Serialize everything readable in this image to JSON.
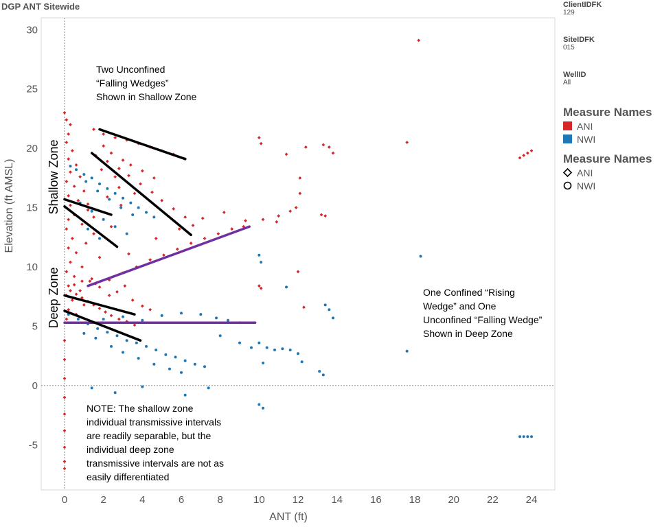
{
  "header": {
    "title": "DGP ANT Sitewide"
  },
  "filters": [
    {
      "label": "ClientIDFK",
      "value": "129"
    },
    {
      "label": "SiteIDFK",
      "value": "015"
    },
    {
      "label": "WellID",
      "value": "All"
    }
  ],
  "legend_color": {
    "title": "Measure Names",
    "items": [
      {
        "label": "ANI",
        "color": "#d62728"
      },
      {
        "label": "NWI",
        "color": "#1f77b4"
      }
    ]
  },
  "legend_shape": {
    "title": "Measure Names",
    "items": [
      {
        "label": "ANI",
        "shape": "diamond"
      },
      {
        "label": "NWI",
        "shape": "circle"
      }
    ]
  },
  "annotations": {
    "shallow_wedges": [
      "Two Unconfined",
      "“Falling Wedges”",
      "Shown in Shallow Zone"
    ],
    "deep_wedges": [
      "One Confined “Rising",
      "Wedge” and One",
      "Unconfined “Falling Wedge”",
      "Shown in Deep Zone"
    ],
    "note": [
      "NOTE:  The shallow zone",
      "individual transmissive intervals",
      "are readily separable, but the",
      "individual deep zone",
      "transmissive intervals are not as",
      "easily differentiated"
    ],
    "shallow_zone": "Shallow Zone",
    "deep_zone": "Deep Zone"
  },
  "chart_data": {
    "type": "scatter",
    "title": "DGP ANT Sitewide",
    "xlabel": "ANT (ft)",
    "ylabel": "Elevation (ft AMSL)",
    "xlim": [
      -1.2,
      25.2
    ],
    "ylim": [
      -8.8,
      31.0
    ],
    "xticks": [
      0,
      2,
      4,
      6,
      8,
      10,
      12,
      14,
      16,
      18,
      20,
      22,
      24
    ],
    "yticks": [
      -5,
      0,
      5,
      10,
      15,
      20,
      25,
      30
    ],
    "grid": false,
    "legend": "right",
    "series": [
      {
        "name": "ANI",
        "color": "#d62728",
        "points": [
          [
            0.0,
            23.0
          ],
          [
            0.1,
            22.4
          ],
          [
            0.3,
            22.0
          ],
          [
            0.2,
            21.2
          ],
          [
            0.1,
            20.5
          ],
          [
            0.4,
            19.8
          ],
          [
            0.2,
            19.1
          ],
          [
            0.6,
            18.6
          ],
          [
            0.3,
            18.0
          ],
          [
            0.8,
            17.6
          ],
          [
            0.1,
            17.2
          ],
          [
            0.5,
            16.8
          ],
          [
            1.0,
            16.4
          ],
          [
            0.2,
            16.0
          ],
          [
            0.7,
            15.6
          ],
          [
            0.3,
            15.2
          ],
          [
            1.2,
            14.8
          ],
          [
            0.5,
            14.4
          ],
          [
            0.2,
            14.0
          ],
          [
            0.9,
            13.6
          ],
          [
            0.1,
            13.2
          ],
          [
            1.5,
            12.8
          ],
          [
            0.4,
            12.4
          ],
          [
            1.1,
            12.0
          ],
          [
            0.2,
            11.6
          ],
          [
            0.6,
            11.2
          ],
          [
            1.8,
            10.8
          ],
          [
            0.3,
            10.4
          ],
          [
            0.9,
            10.0
          ],
          [
            0.1,
            9.6
          ],
          [
            0.5,
            9.2
          ],
          [
            1.3,
            8.8
          ],
          [
            0.2,
            8.4
          ],
          [
            0.8,
            8.0
          ],
          [
            0.1,
            7.6
          ],
          [
            0.4,
            7.2
          ],
          [
            1.0,
            6.8
          ],
          [
            0.2,
            6.4
          ],
          [
            0.6,
            6.0
          ],
          [
            0.1,
            5.6
          ],
          [
            1.5,
            21.6
          ],
          [
            2.0,
            21.2
          ],
          [
            2.6,
            20.9
          ],
          [
            3.2,
            20.7
          ],
          [
            3.8,
            20.4
          ],
          [
            4.4,
            20.1
          ],
          [
            5.0,
            19.8
          ],
          [
            5.6,
            19.5
          ],
          [
            6.2,
            19.1
          ],
          [
            1.6,
            19.4
          ],
          [
            2.2,
            18.9
          ],
          [
            2.8,
            18.3
          ],
          [
            3.3,
            17.7
          ],
          [
            3.9,
            17.0
          ],
          [
            4.5,
            16.3
          ],
          [
            5.0,
            15.6
          ],
          [
            5.6,
            14.9
          ],
          [
            6.2,
            14.2
          ],
          [
            6.6,
            13.5
          ],
          [
            2.0,
            20.2
          ],
          [
            2.4,
            19.6
          ],
          [
            3.0,
            19.0
          ],
          [
            1.9,
            18.2
          ],
          [
            2.6,
            17.6
          ],
          [
            3.4,
            18.6
          ],
          [
            4.0,
            18.1
          ],
          [
            4.6,
            17.5
          ],
          [
            2.8,
            16.7
          ],
          [
            3.6,
            16.2
          ],
          [
            2.2,
            15.9
          ],
          [
            1.2,
            15.3
          ],
          [
            2.9,
            15.2
          ],
          [
            1.5,
            14.2
          ],
          [
            2.4,
            13.4
          ],
          [
            1.6,
            8.6
          ],
          [
            2.3,
            8.9
          ],
          [
            3.0,
            9.5
          ],
          [
            3.7,
            10.0
          ],
          [
            4.4,
            10.6
          ],
          [
            5.1,
            11.0
          ],
          [
            5.8,
            11.5
          ],
          [
            6.5,
            12.0
          ],
          [
            7.2,
            12.4
          ],
          [
            7.9,
            12.8
          ],
          [
            8.6,
            13.2
          ],
          [
            9.2,
            13.4
          ],
          [
            3.3,
            11.1
          ],
          [
            4.7,
            12.4
          ],
          [
            5.9,
            13.2
          ],
          [
            7.1,
            14.1
          ],
          [
            8.2,
            14.6
          ],
          [
            9.3,
            13.9
          ],
          [
            10.2,
            14.0
          ],
          [
            11.0,
            14.3
          ],
          [
            11.6,
            14.7
          ],
          [
            11.9,
            15.0
          ],
          [
            12.1,
            16.2
          ],
          [
            12.1,
            17.5
          ],
          [
            10.0,
            20.9
          ],
          [
            10.1,
            20.4
          ],
          [
            11.4,
            19.5
          ],
          [
            12.4,
            20.1
          ],
          [
            13.3,
            20.3
          ],
          [
            13.6,
            20.1
          ],
          [
            13.8,
            19.6
          ],
          [
            13.2,
            14.4
          ],
          [
            13.4,
            14.3
          ],
          [
            10.9,
            13.8
          ],
          [
            12.0,
            9.6
          ],
          [
            10.0,
            8.4
          ],
          [
            10.1,
            8.2
          ],
          [
            12.3,
            6.6
          ],
          [
            17.6,
            20.5
          ],
          [
            18.2,
            29.1
          ],
          [
            23.4,
            19.2
          ],
          [
            23.6,
            19.4
          ],
          [
            23.8,
            19.6
          ],
          [
            24.0,
            19.8
          ],
          [
            0.3,
            8.0
          ],
          [
            0.6,
            7.7
          ],
          [
            0.9,
            7.4
          ],
          [
            1.2,
            7.1
          ],
          [
            1.5,
            6.8
          ],
          [
            1.8,
            6.5
          ],
          [
            2.1,
            6.2
          ],
          [
            2.4,
            5.9
          ],
          [
            2.8,
            5.6
          ],
          [
            3.2,
            5.4
          ],
          [
            3.6,
            5.1
          ],
          [
            0.5,
            8.5
          ],
          [
            0.9,
            8.8
          ],
          [
            1.4,
            9.0
          ],
          [
            1.8,
            8.3
          ],
          [
            2.3,
            7.6
          ],
          [
            2.7,
            7.9
          ],
          [
            3.1,
            8.4
          ],
          [
            3.5,
            7.2
          ],
          [
            4.0,
            6.7
          ],
          [
            4.4,
            6.4
          ],
          [
            0.0,
            3.8
          ],
          [
            0.0,
            2.2
          ],
          [
            0.0,
            0.6
          ],
          [
            0.0,
            -1.0
          ],
          [
            0.0,
            -2.4
          ],
          [
            0.0,
            -3.8
          ],
          [
            0.0,
            -5.2
          ],
          [
            0.0,
            -6.4
          ],
          [
            0.0,
            -7.0
          ]
        ]
      },
      {
        "name": "NWI",
        "color": "#1f77b4",
        "points": [
          [
            0.3,
            18.5
          ],
          [
            0.6,
            18.2
          ],
          [
            1.0,
            17.8
          ],
          [
            1.4,
            17.5
          ],
          [
            1.8,
            17.0
          ],
          [
            2.2,
            16.6
          ],
          [
            2.6,
            16.2
          ],
          [
            3.0,
            15.8
          ],
          [
            3.4,
            15.4
          ],
          [
            3.8,
            15.0
          ],
          [
            4.2,
            14.6
          ],
          [
            4.6,
            14.2
          ],
          [
            1.1,
            17.2
          ],
          [
            1.7,
            16.4
          ],
          [
            2.3,
            15.7
          ],
          [
            2.9,
            15.0
          ],
          [
            3.5,
            14.4
          ],
          [
            0.8,
            15.4
          ],
          [
            1.4,
            14.7
          ],
          [
            2.0,
            14.0
          ],
          [
            2.6,
            13.4
          ],
          [
            3.2,
            12.8
          ],
          [
            1.2,
            13.2
          ],
          [
            1.8,
            12.4
          ],
          [
            0.2,
            6.0
          ],
          [
            0.7,
            5.6
          ],
          [
            1.2,
            5.2
          ],
          [
            1.7,
            4.8
          ],
          [
            2.2,
            4.5
          ],
          [
            2.7,
            4.2
          ],
          [
            3.2,
            3.8
          ],
          [
            3.7,
            3.6
          ],
          [
            4.2,
            3.3
          ],
          [
            4.7,
            3.0
          ],
          [
            5.2,
            2.6
          ],
          [
            5.7,
            2.4
          ],
          [
            6.2,
            2.1
          ],
          [
            6.7,
            1.8
          ],
          [
            7.2,
            1.6
          ],
          [
            1.0,
            4.4
          ],
          [
            1.6,
            4.0
          ],
          [
            2.4,
            3.3
          ],
          [
            3.0,
            2.8
          ],
          [
            3.8,
            2.3
          ],
          [
            4.6,
            1.8
          ],
          [
            5.4,
            1.4
          ],
          [
            6.0,
            1.1
          ],
          [
            2.0,
            5.6
          ],
          [
            3.0,
            5.8
          ],
          [
            4.0,
            5.5
          ],
          [
            5.0,
            5.9
          ],
          [
            6.0,
            6.1
          ],
          [
            7.0,
            6.0
          ],
          [
            7.8,
            5.7
          ],
          [
            8.4,
            5.5
          ],
          [
            9.0,
            5.3
          ],
          [
            8.0,
            4.2
          ],
          [
            9.0,
            3.6
          ],
          [
            9.6,
            3.2
          ],
          [
            10.0,
            3.6
          ],
          [
            10.4,
            3.2
          ],
          [
            10.8,
            3.0
          ],
          [
            11.2,
            3.1
          ],
          [
            11.6,
            3.0
          ],
          [
            12.0,
            2.7
          ],
          [
            12.2,
            2.0
          ],
          [
            10.2,
            1.9
          ],
          [
            10.0,
            11.0
          ],
          [
            10.1,
            10.4
          ],
          [
            11.4,
            8.3
          ],
          [
            13.4,
            6.8
          ],
          [
            13.6,
            6.4
          ],
          [
            13.8,
            5.7
          ],
          [
            13.1,
            1.2
          ],
          [
            13.3,
            0.9
          ],
          [
            17.6,
            2.9
          ],
          [
            18.3,
            10.9
          ],
          [
            10.0,
            -1.6
          ],
          [
            10.2,
            -1.9
          ],
          [
            23.4,
            -4.3
          ],
          [
            23.6,
            -4.3
          ],
          [
            23.8,
            -4.3
          ],
          [
            24.0,
            -4.3
          ],
          [
            1.4,
            -0.2
          ],
          [
            2.6,
            -0.6
          ],
          [
            4.0,
            -0.1
          ],
          [
            6.2,
            -0.8
          ],
          [
            7.4,
            -0.2
          ]
        ]
      }
    ],
    "trend_lines": [
      {
        "color": "#000000",
        "from": [
          1.8,
          21.6
        ],
        "to": [
          6.2,
          19.1
        ]
      },
      {
        "color": "#000000",
        "from": [
          1.4,
          19.6
        ],
        "to": [
          6.5,
          12.7
        ]
      },
      {
        "color": "#000000",
        "from": [
          0.0,
          15.7
        ],
        "to": [
          2.4,
          14.4
        ]
      },
      {
        "color": "#000000",
        "from": [
          0.0,
          15.1
        ],
        "to": [
          2.7,
          11.7
        ]
      },
      {
        "color": "#7030a0",
        "from": [
          1.2,
          8.4
        ],
        "to": [
          9.5,
          13.4
        ]
      },
      {
        "color": "#000000",
        "from": [
          0.0,
          7.6
        ],
        "to": [
          3.6,
          6.0
        ]
      },
      {
        "color": "#7030a0",
        "from": [
          0.0,
          5.3
        ],
        "to": [
          9.8,
          5.3
        ]
      },
      {
        "color": "#000000",
        "from": [
          0.0,
          6.3
        ],
        "to": [
          3.9,
          3.8
        ]
      }
    ]
  }
}
